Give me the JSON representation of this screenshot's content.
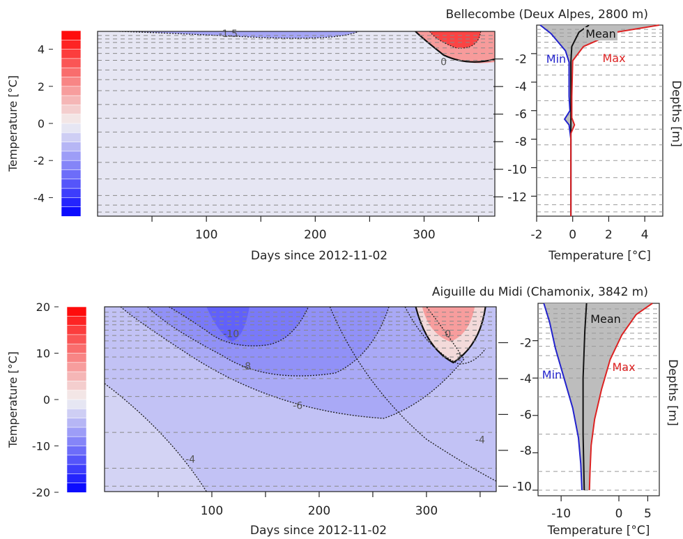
{
  "chart_data": [
    {
      "type": "heatmap",
      "title": "Bellecombe (Deux Alpes, 2800 m)",
      "xlabel": "Days since 2012-11-02",
      "xlim": [
        0,
        365
      ],
      "x_ticks": [
        100,
        200,
        300
      ],
      "right_axis_ticks": [
        "-2",
        "-4",
        "-6",
        "-8",
        "-10",
        "-12"
      ],
      "colorbar": {
        "label": "Temperature [°C]",
        "range": [
          -5,
          5
        ],
        "ticks": [
          "4",
          "2",
          "0",
          "-2",
          "-4"
        ],
        "tick_values": [
          4,
          2,
          0,
          -2,
          -4
        ],
        "low_color": "#0000ff",
        "high_color": "#ff0000",
        "mid_color": "#f2f2f2"
      },
      "contours": [
        {
          "label": "-1.5",
          "x": 120,
          "depth": -0.15
        },
        {
          "label": "0",
          "x": 318,
          "depth": -2.2
        }
      ],
      "profile": {
        "xlabel": "Temperature [°C]",
        "ylabel": "Depths [m]",
        "xlim": [
          -2,
          5
        ],
        "x_ticks": [
          "-2",
          "0",
          "2",
          "4"
        ],
        "x_tick_values": [
          -2,
          0,
          2,
          4
        ],
        "ylim": [
          -13.4,
          0
        ],
        "y_tick_values": [
          -2,
          -4,
          -6,
          -8,
          -10,
          -12
        ],
        "sensor_depths": [
          -0.3,
          -0.55,
          -0.8,
          -1.2,
          -1.6,
          -2.1,
          -2.8,
          -3.5,
          -4.3,
          -5.3,
          -6.3,
          -7.3,
          -8.4,
          -9.5,
          -10.7,
          -11.9,
          -12.6,
          -13.1
        ],
        "series": [
          {
            "name": "Min",
            "color": "#2222cc",
            "points": [
              [
                -1.8,
                0
              ],
              [
                -1.2,
                -0.6
              ],
              [
                -0.4,
                -1.8
              ],
              [
                -0.2,
                -2.6
              ],
              [
                -0.2,
                -5.0
              ],
              [
                -0.15,
                -6.0
              ],
              [
                -0.45,
                -6.6
              ],
              [
                -0.2,
                -7.0
              ],
              [
                -0.1,
                -8.0
              ],
              [
                -0.1,
                -13.4
              ]
            ]
          },
          {
            "name": "Mean",
            "color": "#111111",
            "points": [
              [
                0.9,
                0
              ],
              [
                0.35,
                -0.5
              ],
              [
                -0.05,
                -1.5
              ],
              [
                -0.1,
                -2.6
              ],
              [
                -0.1,
                -6.0
              ],
              [
                -0.1,
                -13.4
              ]
            ]
          },
          {
            "name": "Max",
            "color": "#dd2222",
            "points": [
              [
                4.8,
                0
              ],
              [
                2.4,
                -0.5
              ],
              [
                0.6,
                -1.5
              ],
              [
                0.0,
                -2.5
              ],
              [
                -0.05,
                -5.0
              ],
              [
                -0.05,
                -6.5
              ],
              [
                0.1,
                -7.0
              ],
              [
                -0.1,
                -7.6
              ],
              [
                -0.1,
                -13.4
              ]
            ]
          }
        ]
      }
    },
    {
      "type": "heatmap",
      "title": "Aiguille du Midi (Chamonix, 3842 m)",
      "xlabel": "Days since 2012-11-02",
      "xlim": [
        0,
        365
      ],
      "x_ticks": [
        100,
        200,
        300
      ],
      "right_axis_ticks": [
        "-2",
        "-4",
        "-6",
        "-8",
        "-10"
      ],
      "colorbar": {
        "label": "Temperature [°C]",
        "range": [
          -20,
          20
        ],
        "ticks": [
          "20",
          "10",
          "0",
          "-10",
          "-20"
        ],
        "tick_values": [
          20,
          10,
          0,
          -10,
          -20
        ],
        "low_color": "#0000ff",
        "high_color": "#ff0000",
        "mid_color": "#f2f2f2"
      },
      "contours": [
        {
          "label": "-10",
          "x": 118,
          "depth": -1.5
        },
        {
          "label": "-8",
          "x": 132,
          "depth": -3.3
        },
        {
          "label": "-6",
          "x": 180,
          "depth": -5.5
        },
        {
          "label": "-4",
          "x": 80,
          "depth": -8.5
        },
        {
          "label": "-4",
          "x": 350,
          "depth": -7.4
        },
        {
          "label": "0",
          "x": 320,
          "depth": -1.5
        },
        {
          "label": "2",
          "x": 330,
          "depth": -2.8
        }
      ],
      "profile": {
        "xlabel": "Temperature [°C]",
        "ylabel": "Depths [m]",
        "xlim": [
          -14,
          7
        ],
        "x_ticks": [
          "-10",
          "0",
          "5"
        ],
        "x_tick_values": [
          -10,
          0,
          5
        ],
        "ylim": [
          -10.3,
          0
        ],
        "y_tick_values": [
          -2,
          -4,
          -6,
          -8,
          -10
        ],
        "sensor_depths": [
          -0.3,
          -0.55,
          -0.8,
          -1.0,
          -1.3,
          -1.6,
          -1.9,
          -2.3,
          -2.8,
          -3.5,
          -4.0,
          -5.0,
          -7.0,
          -9.0,
          -10.0
        ],
        "series": [
          {
            "name": "Min",
            "color": "#2222cc",
            "points": [
              [
                -13,
                0
              ],
              [
                -12,
                -1.0
              ],
              [
                -11,
                -2.4
              ],
              [
                -9.5,
                -4.0
              ],
              [
                -8,
                -5.6
              ],
              [
                -7,
                -7.2
              ],
              [
                -6.6,
                -8.6
              ],
              [
                -6.4,
                -10.0
              ]
            ]
          },
          {
            "name": "Mean",
            "color": "#111111",
            "points": [
              [
                -5.6,
                0
              ],
              [
                -5.9,
                -1.5
              ],
              [
                -6.2,
                -4.0
              ],
              [
                -6.2,
                -7.0
              ],
              [
                -6.0,
                -10.0
              ]
            ]
          },
          {
            "name": "Max",
            "color": "#dd2222",
            "points": [
              [
                5.8,
                0
              ],
              [
                3.0,
                -0.6
              ],
              [
                0.5,
                -1.7
              ],
              [
                -1.5,
                -3.0
              ],
              [
                -3.0,
                -4.6
              ],
              [
                -4.2,
                -6.2
              ],
              [
                -4.8,
                -7.6
              ],
              [
                -5.0,
                -9.0
              ],
              [
                -5.1,
                -10.0
              ]
            ]
          }
        ]
      }
    }
  ]
}
